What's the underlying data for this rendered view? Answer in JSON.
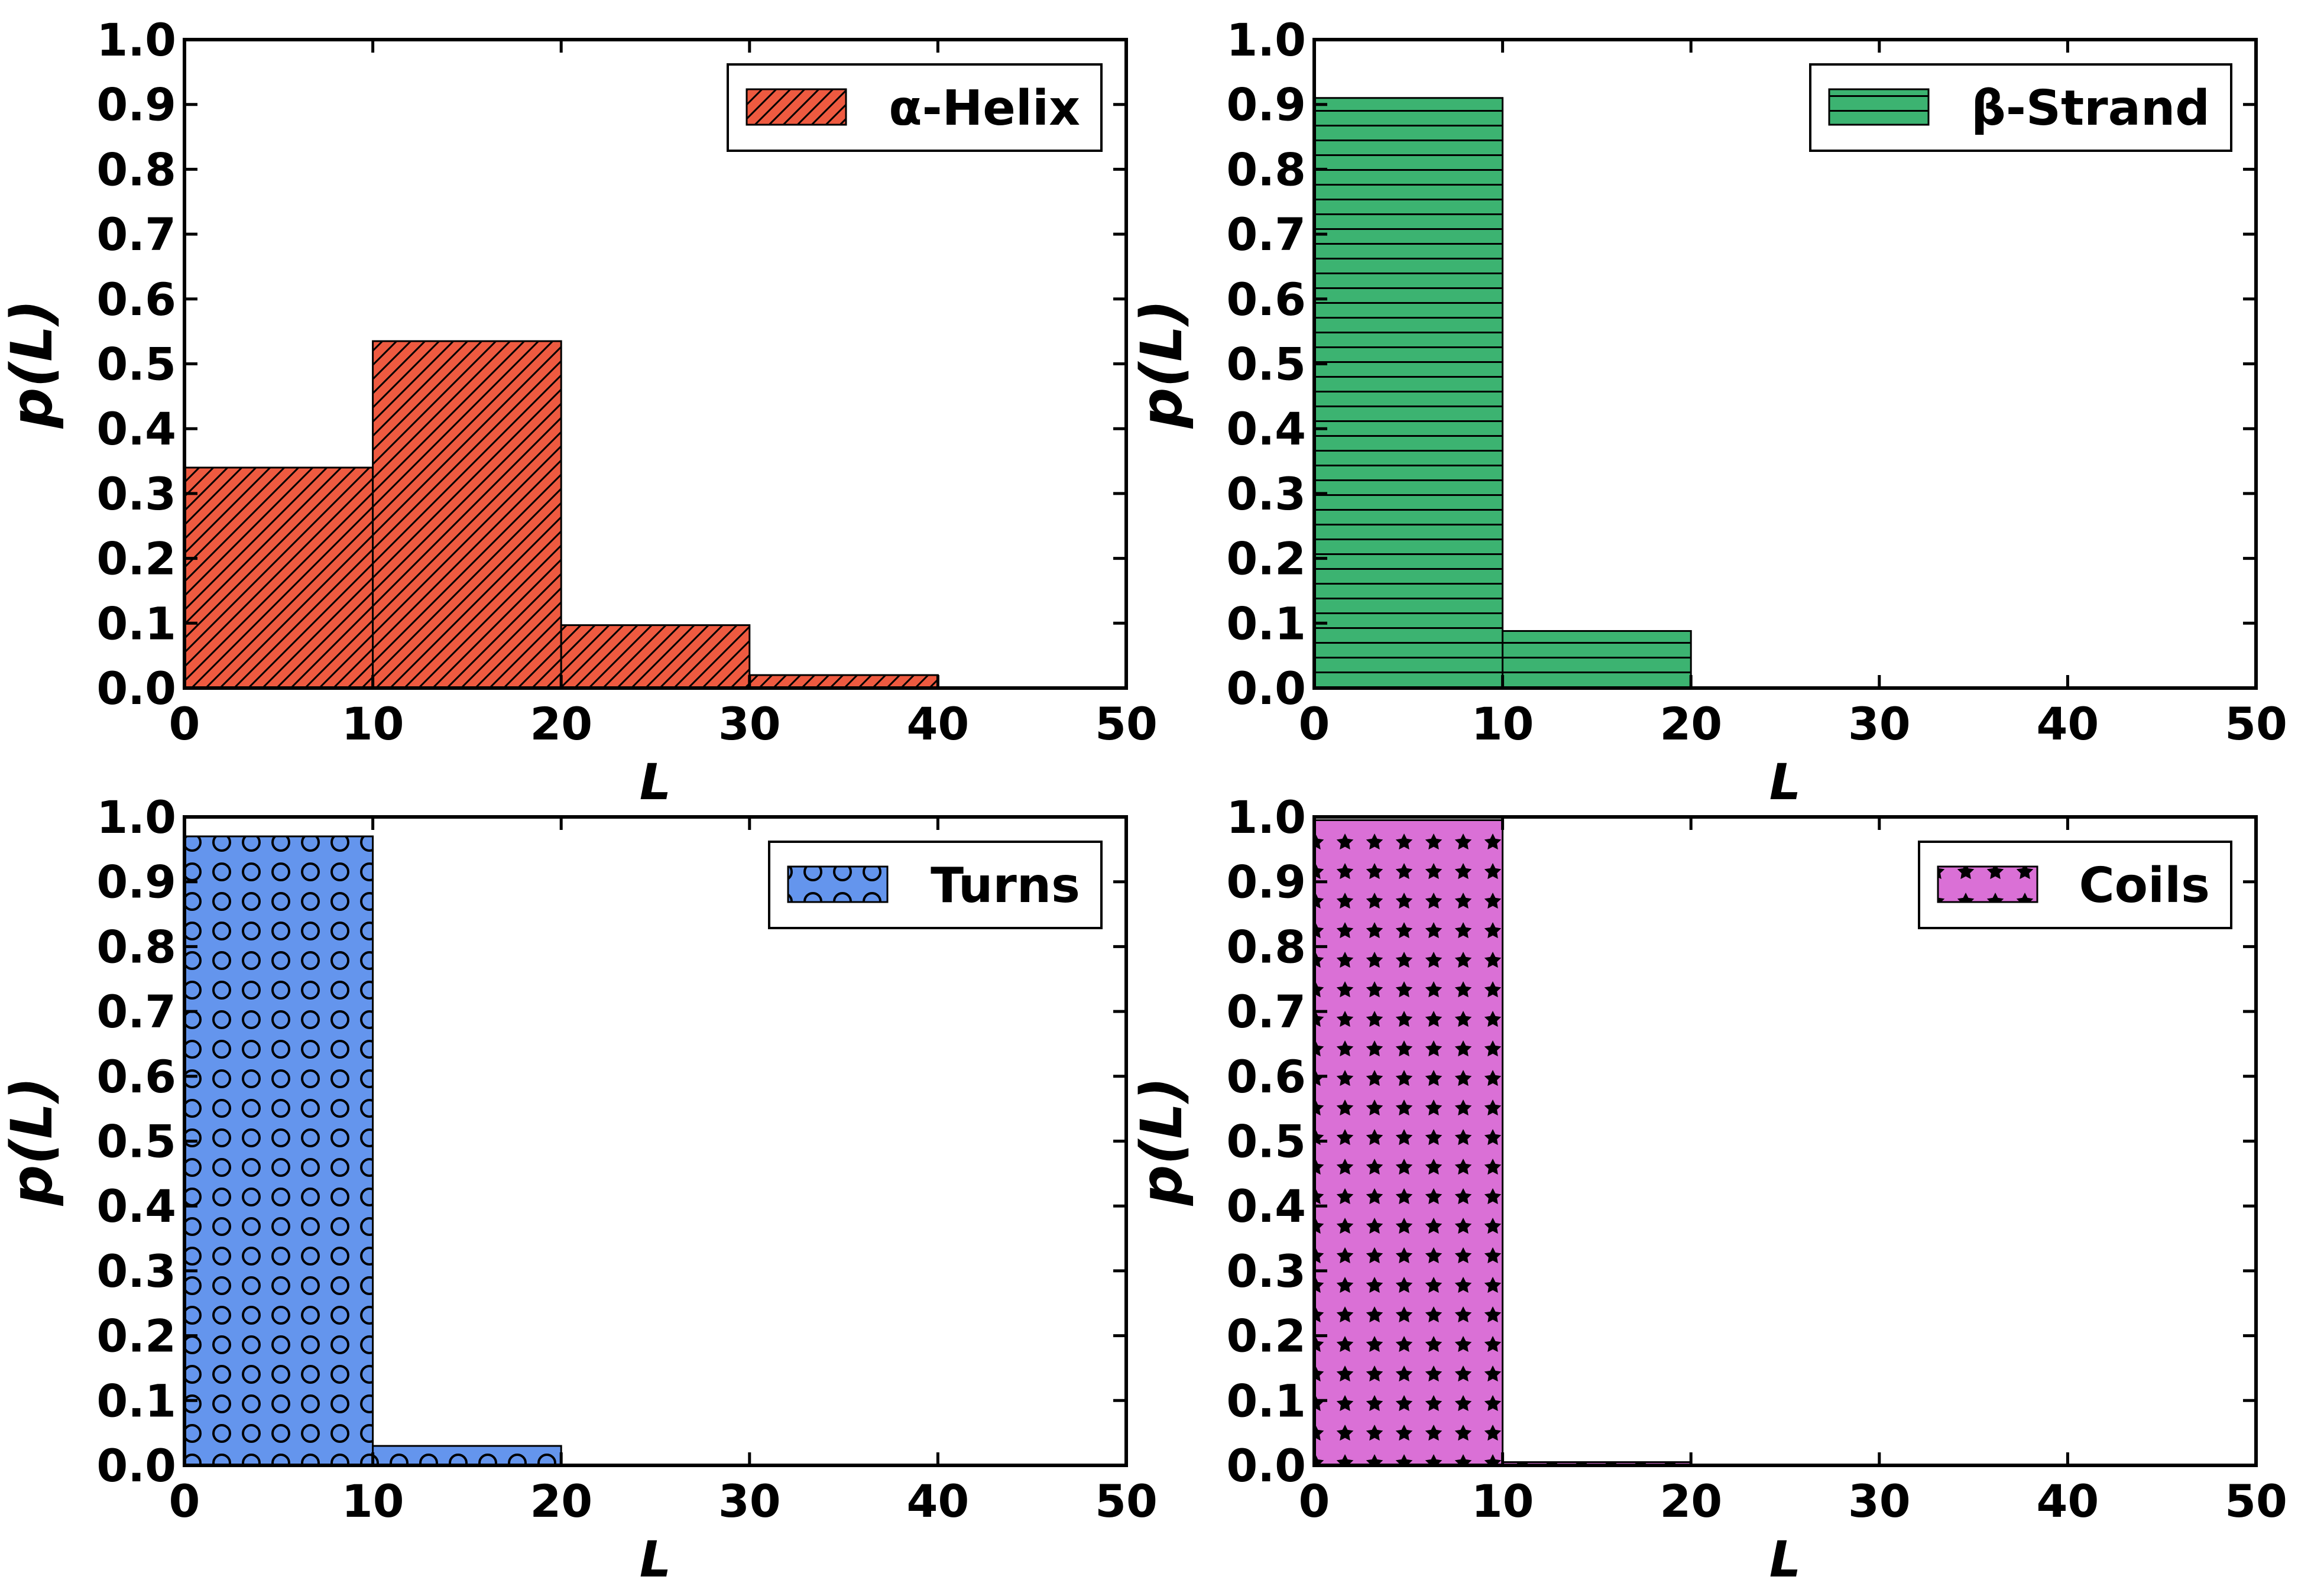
{
  "chart_data": [
    {
      "type": "bar",
      "series_name": "α-Helix",
      "bin_edges": [
        0,
        10,
        20,
        30,
        40,
        50
      ],
      "values": [
        0.34,
        0.535,
        0.097,
        0.02,
        0.001
      ],
      "color": "#ee5a40",
      "hatch": "diagonal",
      "xlabel": "L",
      "ylabel": "p(L)",
      "xlim": [
        0,
        50
      ],
      "ylim": [
        0,
        1.0
      ],
      "xticks": [
        "0",
        "10",
        "20",
        "30",
        "40",
        "50"
      ],
      "yticks": [
        "0.0",
        "0.1",
        "0.2",
        "0.3",
        "0.4",
        "0.5",
        "0.6",
        "0.7",
        "0.8",
        "0.9",
        "1.0"
      ],
      "legend_position": "top-right"
    },
    {
      "type": "bar",
      "series_name": "β-Strand",
      "bin_edges": [
        0,
        10,
        20,
        30,
        40,
        50
      ],
      "values": [
        0.91,
        0.088,
        0.0,
        0.0,
        0.0
      ],
      "color": "#3cb371",
      "hatch": "horizontal",
      "xlabel": "L",
      "ylabel": "p(L)",
      "xlim": [
        0,
        50
      ],
      "ylim": [
        0,
        1.0
      ],
      "xticks": [
        "0",
        "10",
        "20",
        "30",
        "40",
        "50"
      ],
      "yticks": [
        "0.0",
        "0.1",
        "0.2",
        "0.3",
        "0.4",
        "0.5",
        "0.6",
        "0.7",
        "0.8",
        "0.9",
        "1.0"
      ],
      "legend_position": "top-right"
    },
    {
      "type": "bar",
      "series_name": "Turns",
      "bin_edges": [
        0,
        10,
        20,
        30,
        40,
        50
      ],
      "values": [
        0.97,
        0.03,
        0.0,
        0.0,
        0.0
      ],
      "color": "#6495ed",
      "hatch": "circles",
      "xlabel": "L",
      "ylabel": "p(L)",
      "xlim": [
        0,
        50
      ],
      "ylim": [
        0,
        1.0
      ],
      "xticks": [
        "0",
        "10",
        "20",
        "30",
        "40",
        "50"
      ],
      "yticks": [
        "0.0",
        "0.1",
        "0.2",
        "0.3",
        "0.4",
        "0.5",
        "0.6",
        "0.7",
        "0.8",
        "0.9",
        "1.0"
      ],
      "legend_position": "top-right"
    },
    {
      "type": "bar",
      "series_name": "Coils",
      "bin_edges": [
        0,
        10,
        20,
        30,
        40,
        50
      ],
      "values": [
        0.995,
        0.005,
        0.0,
        0.0,
        0.0
      ],
      "color": "#da70d6",
      "hatch": "stars",
      "xlabel": "L",
      "ylabel": "p(L)",
      "xlim": [
        0,
        50
      ],
      "ylim": [
        0,
        1.0
      ],
      "xticks": [
        "0",
        "10",
        "20",
        "30",
        "40",
        "50"
      ],
      "yticks": [
        "0.0",
        "0.1",
        "0.2",
        "0.3",
        "0.4",
        "0.5",
        "0.6",
        "0.7",
        "0.8",
        "0.9",
        "1.0"
      ],
      "legend_position": "top-right"
    }
  ]
}
